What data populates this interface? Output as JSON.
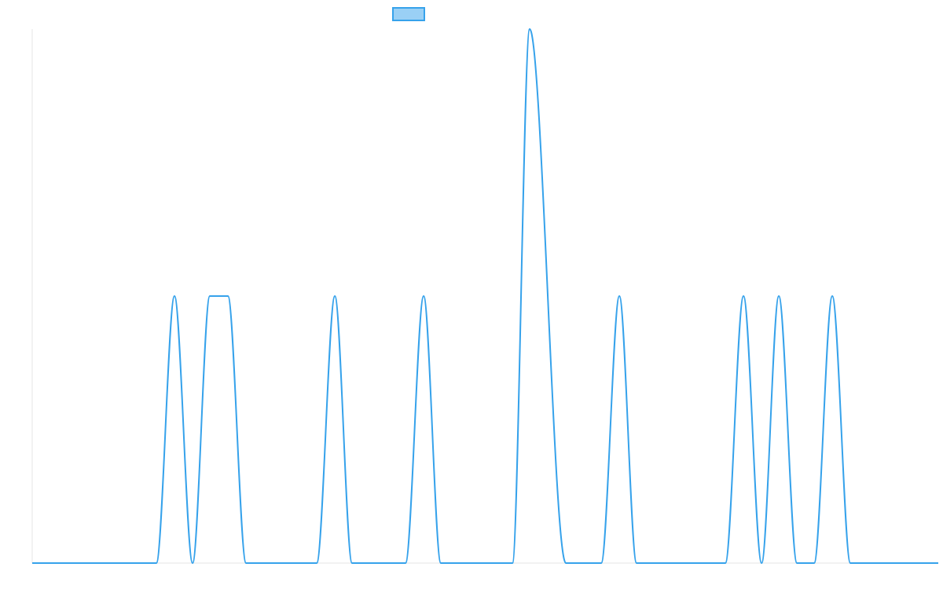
{
  "chart_data": {
    "type": "line",
    "title": "",
    "xlabel": "",
    "ylabel": "",
    "legend": {
      "placement": "top-center",
      "entries": [
        {
          "name": "",
          "color": "#36a2eb",
          "fill": "#9ad0f5"
        }
      ]
    },
    "grid": false,
    "ylim": [
      0,
      2
    ],
    "xlim": [
      0,
      1000
    ],
    "colors": {
      "line": "#36a2eb",
      "axis": "#e5e5e5"
    },
    "series": [
      {
        "name": "",
        "points": [
          [
            0,
            0
          ],
          [
            137,
            0
          ],
          [
            157,
            1
          ],
          [
            177,
            0
          ],
          [
            196,
            1
          ],
          [
            216,
            1
          ],
          [
            236,
            0
          ],
          [
            314,
            0
          ],
          [
            334,
            1
          ],
          [
            353,
            0
          ],
          [
            412,
            0
          ],
          [
            432,
            1
          ],
          [
            451,
            0
          ],
          [
            530,
            0
          ],
          [
            549,
            2
          ],
          [
            589,
            0
          ],
          [
            628,
            0
          ],
          [
            648,
            1
          ],
          [
            667,
            0
          ],
          [
            765,
            0
          ],
          [
            785,
            1
          ],
          [
            805,
            0
          ],
          [
            824,
            1
          ],
          [
            844,
            0
          ],
          [
            863,
            0
          ],
          [
            883,
            1
          ],
          [
            903,
            0
          ],
          [
            1000,
            0
          ]
        ]
      }
    ]
  }
}
